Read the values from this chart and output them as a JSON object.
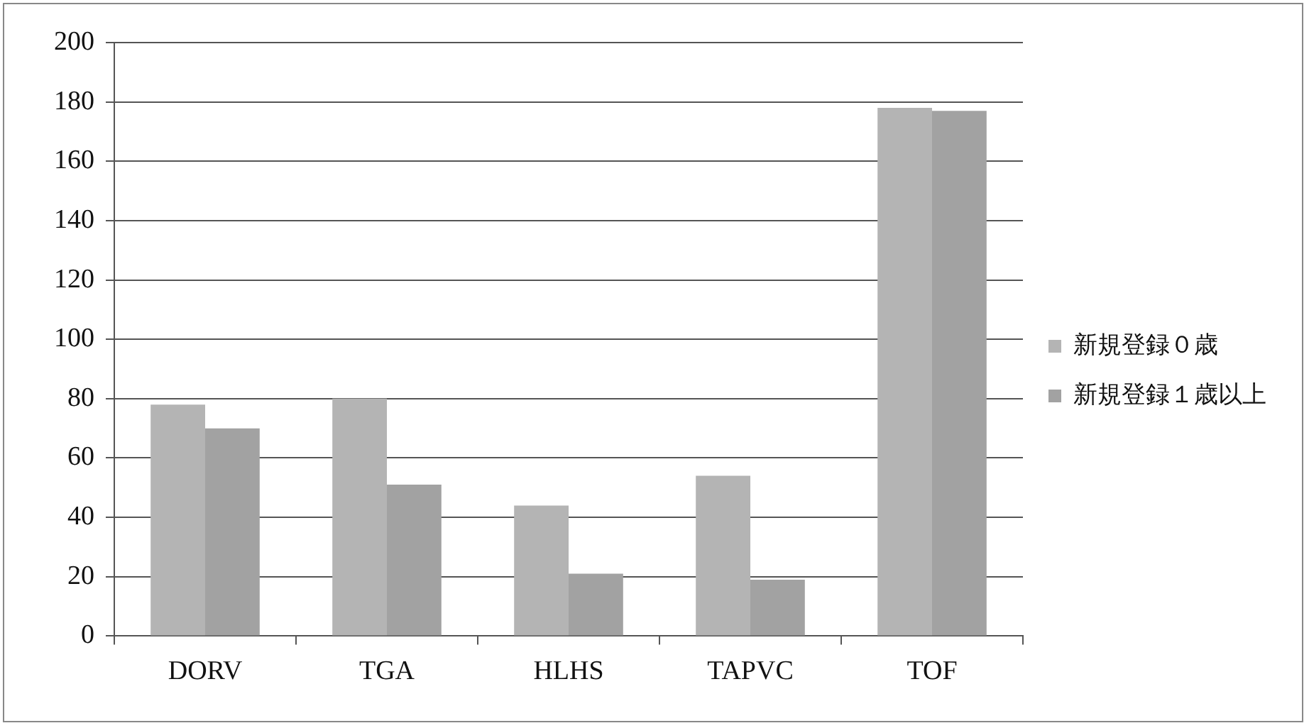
{
  "chart_data": {
    "type": "bar",
    "categories": [
      "DORV",
      "TGA",
      "HLHS",
      "TAPVC",
      "TOF"
    ],
    "series": [
      {
        "name": "新規登録０歳",
        "color": "#b4b4b4",
        "values": [
          78,
          80,
          44,
          54,
          178
        ]
      },
      {
        "name": "新規登録１歳以上",
        "color": "#a2a2a2",
        "values": [
          70,
          51,
          21,
          19,
          177
        ]
      }
    ],
    "ylim": [
      0,
      200
    ],
    "yticks": [
      0,
      20,
      40,
      60,
      80,
      100,
      120,
      140,
      160,
      180,
      200
    ],
    "grid": "y",
    "legend": "right"
  }
}
